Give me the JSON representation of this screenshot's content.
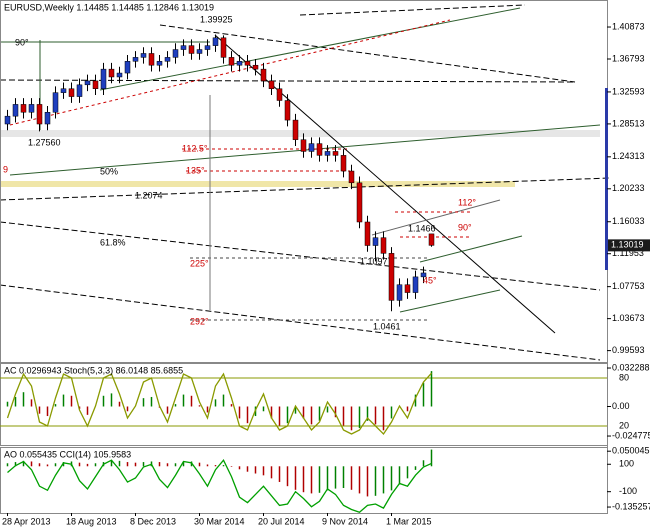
{
  "chart_data": [
    {
      "type": "candlestick",
      "title": "EURUSD,Weekly  1.14485 1.14485 1.12846 1.13019",
      "categories": [
        "28 Apr 2013",
        null,
        null,
        null,
        null,
        null,
        null,
        null,
        "18 Aug 2013",
        null,
        null,
        null,
        null,
        null,
        null,
        null,
        "8 Dec 2013",
        null,
        null,
        null,
        null,
        null,
        null,
        null,
        "30 Mar 2014",
        null,
        null,
        null,
        null,
        null,
        null,
        null,
        "20 Jul 2014",
        null,
        null,
        null,
        null,
        null,
        null,
        null,
        "9 Nov 2014",
        null,
        null,
        null,
        null,
        null,
        null,
        null,
        "1 Mar 2015",
        null,
        null,
        null,
        null,
        null
      ],
      "open": [
        1.285,
        1.295,
        1.31,
        1.3,
        1.31,
        1.285,
        1.3,
        1.325,
        1.33,
        1.32,
        1.335,
        1.34,
        1.33,
        1.355,
        1.345,
        1.35,
        1.365,
        1.37,
        1.375,
        1.36,
        1.365,
        1.37,
        1.38,
        1.385,
        1.375,
        1.38,
        1.385,
        1.395,
        1.37,
        1.36,
        1.365,
        1.36,
        1.355,
        1.34,
        1.33,
        1.315,
        1.29,
        1.265,
        1.25,
        1.26,
        1.245,
        1.25,
        1.245,
        1.225,
        1.21,
        1.16,
        1.13,
        1.14,
        1.12,
        1.06,
        1.08,
        1.07,
        1.09,
        1.14485
      ],
      "high": [
        1.303,
        1.318,
        1.318,
        1.318,
        1.318,
        1.308,
        1.333,
        1.338,
        1.338,
        1.343,
        1.348,
        1.348,
        1.363,
        1.363,
        1.358,
        1.373,
        1.378,
        1.383,
        1.383,
        1.373,
        1.378,
        1.388,
        1.393,
        1.393,
        1.388,
        1.393,
        1.39925,
        1.398,
        1.378,
        1.373,
        1.373,
        1.368,
        1.363,
        1.348,
        1.338,
        1.323,
        1.298,
        1.273,
        1.268,
        1.268,
        1.258,
        1.258,
        1.253,
        1.233,
        1.218,
        1.168,
        1.148,
        1.148,
        1.128,
        1.088,
        1.088,
        1.098,
        1.103,
        1.14485
      ],
      "low": [
        1.277,
        1.287,
        1.292,
        1.292,
        1.2756,
        1.277,
        1.292,
        1.317,
        1.312,
        1.312,
        1.327,
        1.322,
        1.322,
        1.337,
        1.337,
        1.342,
        1.357,
        1.362,
        1.352,
        1.352,
        1.357,
        1.362,
        1.372,
        1.367,
        1.367,
        1.372,
        1.377,
        1.362,
        1.352,
        1.352,
        1.352,
        1.347,
        1.332,
        1.322,
        1.307,
        1.282,
        1.257,
        1.242,
        1.242,
        1.237,
        1.237,
        1.237,
        1.217,
        1.202,
        1.152,
        1.122,
        1.1097,
        1.112,
        1.0461,
        1.052,
        1.062,
        1.062,
        1.082,
        1.12846
      ],
      "close": [
        1.295,
        1.31,
        1.3,
        1.31,
        1.285,
        1.3,
        1.325,
        1.33,
        1.32,
        1.335,
        1.34,
        1.33,
        1.355,
        1.345,
        1.35,
        1.365,
        1.37,
        1.375,
        1.36,
        1.365,
        1.37,
        1.38,
        1.385,
        1.375,
        1.38,
        1.385,
        1.395,
        1.37,
        1.36,
        1.365,
        1.36,
        1.355,
        1.34,
        1.33,
        1.315,
        1.29,
        1.265,
        1.25,
        1.26,
        1.245,
        1.25,
        1.245,
        1.225,
        1.21,
        1.16,
        1.13,
        1.14,
        1.12,
        1.06,
        1.08,
        1.07,
        1.09,
        1.095,
        1.13019
      ],
      "up_color": "#1f3fbf",
      "down_color": "#cc0000",
      "ylim": [
        0.9814,
        1.4432
      ],
      "yticks": [
        0.99593,
        1.03673,
        1.07753,
        1.11953,
        1.16033,
        1.20233,
        1.24313,
        1.28513,
        1.32593,
        1.36793,
        1.40873
      ],
      "annotations": [
        "1.39925",
        "1.27560",
        "1.2074",
        "1.1466",
        "1.1097",
        "1.0461",
        "50%",
        "61.8%",
        "90°",
        "112.5°",
        "135°",
        "225°",
        "292°",
        "112°",
        "90°",
        "45°",
        "9"
      ]
    },
    {
      "type": "oscillator",
      "title": "AC 0.0296943  Stoch(5,3,3) 86.0148 85.6855",
      "histogram": {
        "values": [
          0.004,
          0.008,
          0.012,
          0.006,
          -0.006,
          -0.008,
          0.002,
          0.01,
          0.009,
          -0.002,
          -0.007,
          0.0,
          0.009,
          0.011,
          0.004,
          -0.004,
          0.0,
          0.007,
          0.008,
          -0.001,
          -0.006,
          0.002,
          0.01,
          0.009,
          0.001,
          -0.005,
          0.006,
          0.01,
          0.002,
          -0.01,
          -0.014,
          -0.008,
          -0.004,
          -0.01,
          -0.016,
          -0.014,
          -0.006,
          -0.01,
          -0.015,
          -0.012,
          -0.005,
          -0.009,
          -0.016,
          -0.02,
          -0.018,
          -0.012,
          -0.015,
          -0.02,
          -0.01,
          0.0,
          -0.004,
          0.01,
          0.02,
          0.0296943
        ],
        "up_color": "#008000",
        "down_color": "#b00000"
      },
      "line": {
        "values": [
          30,
          60,
          85,
          70,
          25,
          20,
          55,
          85,
          80,
          40,
          20,
          45,
          80,
          85,
          60,
          30,
          45,
          75,
          80,
          45,
          25,
          55,
          85,
          80,
          50,
          30,
          70,
          85,
          55,
          20,
          15,
          40,
          60,
          30,
          15,
          20,
          45,
          30,
          15,
          25,
          50,
          35,
          15,
          10,
          15,
          30,
          20,
          10,
          25,
          45,
          30,
          55,
          75,
          86.0148
        ],
        "color": "#8a9a00"
      },
      "ylim": [
        -0.0323,
        0.0365
      ],
      "yticks": [
        -0.024775,
        {
          "value": 0,
          "label": "0.00"
        },
        0.032288
      ],
      "y2lim": [
        -3.75,
        98.75
      ],
      "y2ticks": [
        20,
        80
      ]
    },
    {
      "type": "oscillator",
      "title": "AO 0.055435  CCI(14) 105.9583",
      "histogram": {
        "values": [
          0.01,
          0.014,
          0.018,
          0.016,
          0.01,
          0.006,
          0.01,
          0.014,
          0.016,
          0.012,
          0.008,
          0.01,
          0.014,
          0.018,
          0.018,
          0.014,
          0.012,
          0.014,
          0.016,
          0.014,
          0.01,
          0.01,
          0.014,
          0.016,
          0.012,
          0.006,
          0.004,
          0.004,
          -0.002,
          -0.01,
          -0.018,
          -0.024,
          -0.03,
          -0.04,
          -0.052,
          -0.066,
          -0.078,
          -0.086,
          -0.09,
          -0.088,
          -0.08,
          -0.074,
          -0.072,
          -0.078,
          -0.09,
          -0.1,
          -0.098,
          -0.09,
          -0.08,
          -0.06,
          -0.04,
          -0.012,
          0.02,
          0.055435
        ],
        "up_color": "#008000",
        "down_color": "#b00000"
      },
      "line": {
        "values": [
          40,
          90,
          120,
          60,
          -60,
          -90,
          20,
          110,
          100,
          -20,
          -80,
          10,
          100,
          130,
          60,
          -30,
          0,
          80,
          100,
          -10,
          -70,
          20,
          120,
          110,
          30,
          -60,
          60,
          130,
          10,
          -140,
          -180,
          -120,
          -60,
          -130,
          -200,
          -190,
          -100,
          -150,
          -210,
          -170,
          -80,
          -120,
          -200,
          -230,
          -250,
          -200,
          -190,
          -220,
          -120,
          -40,
          -60,
          20,
          80,
          105.9583
        ],
        "color": "#00a000"
      },
      "ylim": [
        -0.155,
        0.064
      ],
      "yticks": [
        -0.135257,
        0.050045
      ],
      "y2lim": [
        -255.6,
        226
      ],
      "y2ticks": [
        -100,
        100
      ]
    }
  ]
}
